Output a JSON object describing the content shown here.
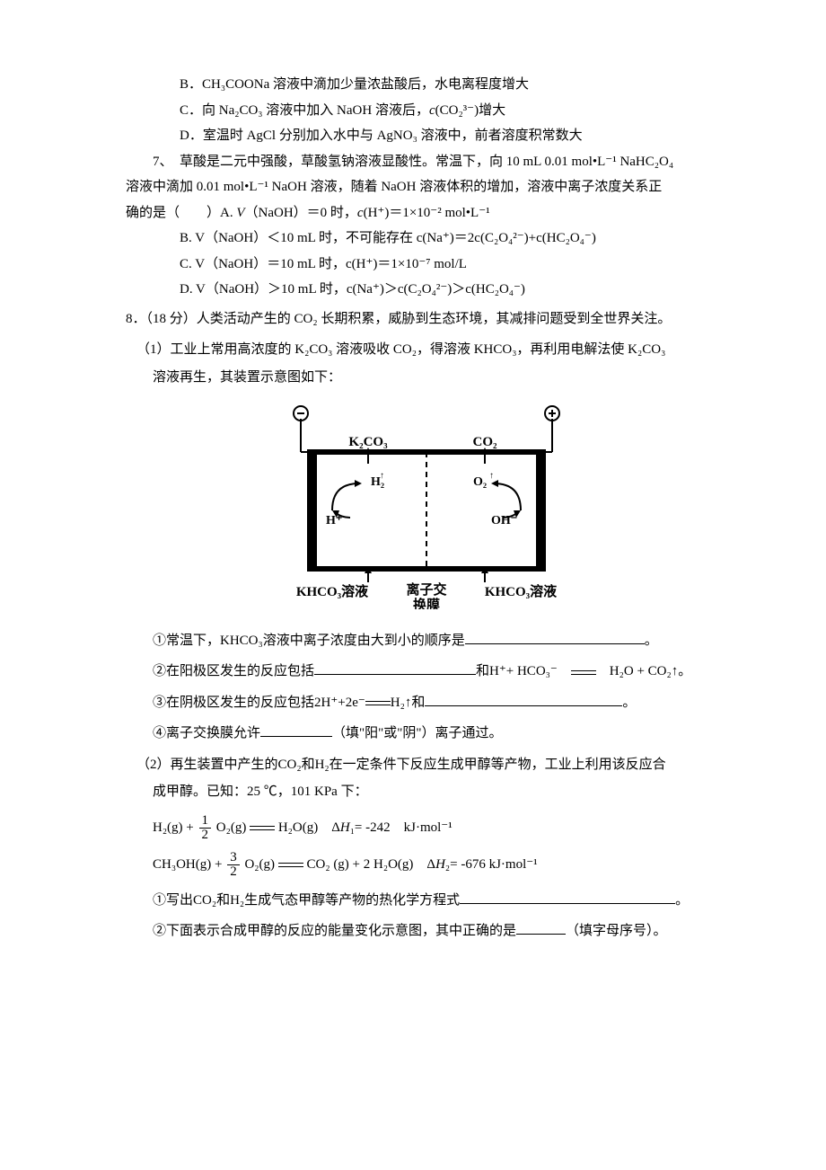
{
  "q6": {
    "optB": "B．CH₃COONa 溶液中滴加少量浓盐酸后，水电离程度增大",
    "optC_pre": "C．向 Na₂CO₃ 溶液中加入 NaOH 溶液后，",
    "optC_it": "c",
    "optC_post": "(CO₂³⁻)增大",
    "optD": "D．室温时 AgCl 分别加入水中与 AgNO₃ 溶液中，前者溶度积常数大"
  },
  "q7": {
    "stem1": "7、　草酸是二元中强酸，草酸氢钠溶液显酸性。常温下，向 10 mL 0.01 mol•L⁻¹ NaHC₂O₄",
    "stem2": "溶液中滴加 0.01 mol•L⁻¹ NaOH 溶液，随着 NaOH 溶液体积的增加，溶液中离子浓度关系正",
    "stem3a": "确的是（　　）A. ",
    "stem3b": "V",
    "stem3c": "（NaOH）＝0 时，",
    "stem3d": "c",
    "stem3e": "(H⁺)＝1×10⁻² mol•L⁻¹",
    "optB": "B. V（NaOH）＜10 mL 时，不可能存在 c(Na⁺)＝2c(C₂O₄²⁻)+c(HC₂O₄⁻)",
    "optC": "C. V（NaOH）＝10 mL 时，c(H⁺)＝1×10⁻⁷ mol/L",
    "optD": "D. V（NaOH）＞10 mL 时，c(Na⁺)＞c(C₂O₄²⁻)＞c(HC₂O₄⁻)"
  },
  "q8": {
    "head": "8．（18 分）人类活动产生的 CO₂ 长期积累，威胁到生态环境，其减排问题受到全世界关注。",
    "p1a": "（1）工业上常用高浓度的 K₂CO₃ 溶液吸收 CO₂，得溶液 KHCO₃，再利用电解法使 K₂CO₃",
    "p1b": "溶液再生，其装置示意图如下：",
    "d1": "①常温下，KHCO₃溶液中离子浓度由大到小的顺序是",
    "d1_end": "。",
    "d2a": "②在阳极区发生的反应包括",
    "d2b": "和H⁺+ HCO₃⁻　",
    "d2c": "　H₂O + CO₂↑。",
    "d3a": "③在阴极区发生的反应包括2H⁺+2e⁻",
    "d3b": "H₂↑和",
    "d3c": "。",
    "d4a": "④离子交换膜允许",
    "d4b": "（填\"阳\"或\"阴\"）离子通过。",
    "p2a": "（2）再生装置中产生的CO₂和H₂在一定条件下反应生成甲醇等产物，工业上利用该反应合",
    "p2b": "成甲醇。已知：25 ℃，101 KPa 下：",
    "eq1a": "H₂(g) + ",
    "eq1b": " O₂(g) ",
    "eq1c": " H₂O(g)　Δ",
    "eq1c_it": "H",
    "eq1d": "₁= -242　kJ·mol⁻¹",
    "eq2a": "CH₃OH(g) + ",
    "eq2b": " O₂(g) ",
    "eq2c": " CO₂ (g) + 2 H₂O(g)　Δ",
    "eq2c_it": "H",
    "eq2d": "₂= -676 kJ·mol⁻¹",
    "w1a": "①写出CO₂和H₂生成气态甲醇等产物的热化学方程式",
    "w1b": "。",
    "w2a": "②下面表示合成甲醇的反应的能量变化示意图，其中正确的是",
    "w2b": "（填字母序号）。"
  },
  "diagram": {
    "k2co3": "K₂CO₃",
    "co2": "CO₂",
    "h2": "H₂",
    "o2": "O₂",
    "hplus": "H⁺",
    "ohminus": "OH⁻",
    "khco3_l": "KHCO₃溶液",
    "khco3_r": "KHCO₃溶液",
    "membrane1": "离子交",
    "membrane2": "换膜",
    "stroke": "#000000",
    "stroke_heavy": 6,
    "font_weight": "bold",
    "font_size": 15
  },
  "blanks": {
    "b1": 200,
    "b2": 180,
    "b3": 220,
    "b4": 80,
    "b5": 240,
    "b6": 55
  }
}
